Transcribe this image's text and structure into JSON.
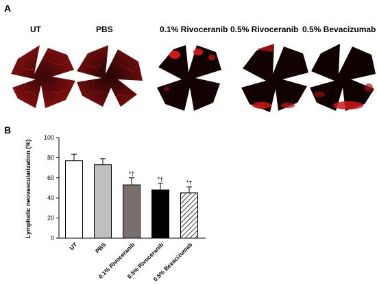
{
  "panel_a": {
    "letter": "A",
    "images": [
      {
        "label": "UT"
      },
      {
        "label": "PBS"
      },
      {
        "label": "0.1% Rivoceranib"
      },
      {
        "label": "0.5% Rivoceranib"
      },
      {
        "label": "0.5% Bevacizumab"
      }
    ]
  },
  "panel_b": {
    "letter": "B"
  },
  "chart_data": {
    "type": "bar",
    "ylabel": "Lymphatic neovascularization (%)",
    "xlabel": "",
    "ylim": [
      0,
      100
    ],
    "yticks": [
      0,
      20,
      40,
      60,
      80,
      100
    ],
    "categories": [
      "UT",
      "PBS",
      "0.1% Rivoceranib",
      "0.5% Rivoceranib",
      "0.5% Bevacizumab"
    ],
    "values": [
      77,
      73,
      53,
      48,
      45
    ],
    "errors": [
      6.5,
      6,
      7,
      6.5,
      6
    ],
    "significance": [
      "",
      "",
      "*†",
      "*†",
      "*†"
    ],
    "fills": [
      "white",
      "light-gray",
      "dark-gray",
      "black",
      "hatched"
    ],
    "colors": {
      "white": "#ffffff",
      "light-gray": "#bfbfbf",
      "dark-gray": "#7a6f6f",
      "black": "#000000"
    }
  }
}
